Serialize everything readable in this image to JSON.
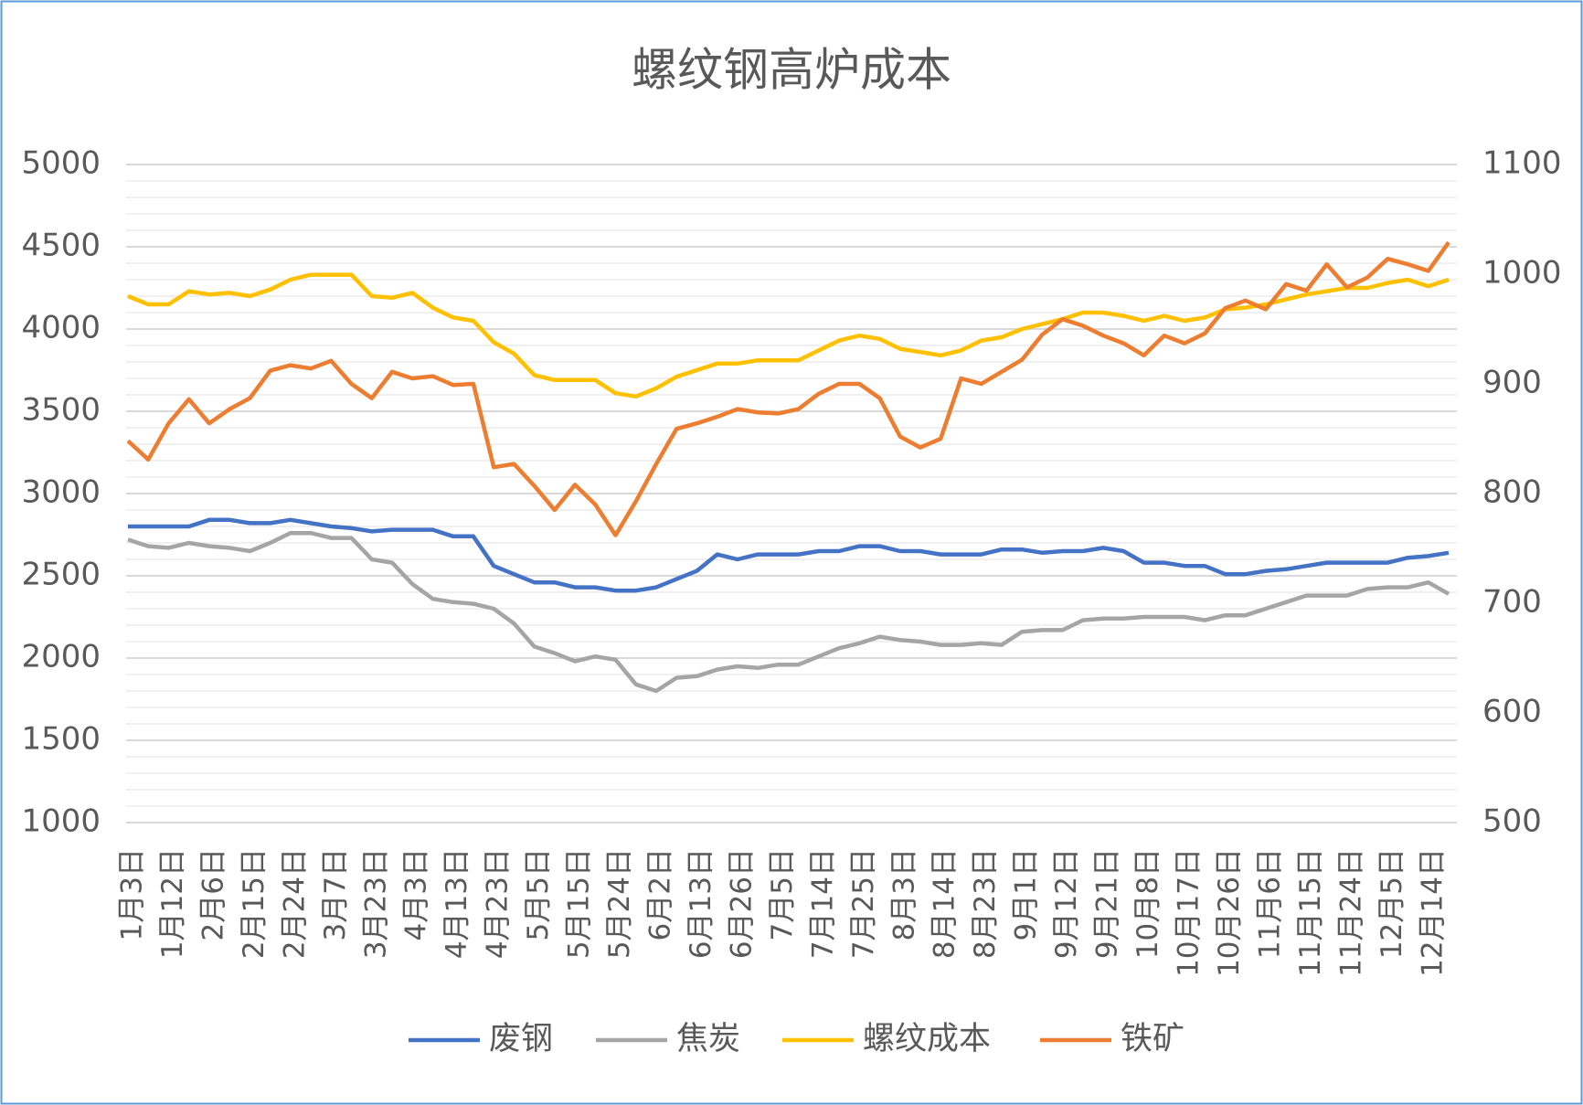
{
  "chart_data": {
    "type": "line",
    "title": "螺纹钢高炉成本",
    "categories": [
      "1月3日",
      null,
      "1月12日",
      null,
      "2月6日",
      null,
      "2月15日",
      null,
      "2月24日",
      null,
      "3月7日",
      null,
      "3月23日",
      null,
      "4月3日",
      null,
      "4月13日",
      null,
      "4月23日",
      null,
      "5月5日",
      null,
      "5月15日",
      null,
      "5月24日",
      null,
      "6月2日",
      null,
      "6月13日",
      null,
      "6月26日",
      null,
      "7月5日",
      null,
      "7月14日",
      null,
      "7月25日",
      null,
      "8月3日",
      null,
      "8月14日",
      null,
      "8月23日",
      null,
      "9月1日",
      null,
      "9月12日",
      null,
      "9月21日",
      null,
      "10月8日",
      null,
      "10月17日",
      null,
      "10月26日",
      null,
      "11月6日",
      null,
      "11月15日",
      null,
      "11月24日",
      null,
      "12月5日",
      null,
      "12月14日",
      null
    ],
    "series": [
      {
        "name": "废钢",
        "color": "#4472c4",
        "values": [
          2800,
          2800,
          2800,
          2800,
          2840,
          2840,
          2820,
          2820,
          2840,
          2820,
          2800,
          2790,
          2770,
          2780,
          2780,
          2780,
          2740,
          2740,
          2560,
          2510,
          2460,
          2460,
          2430,
          2430,
          2410,
          2410,
          2430,
          2480,
          2530,
          2630,
          2600,
          2630,
          2630,
          2630,
          2650,
          2650,
          2680,
          2680,
          2650,
          2650,
          2630,
          2630,
          2630,
          2660,
          2660,
          2640,
          2650,
          2650,
          2670,
          2650,
          2580,
          2580,
          2560,
          2560,
          2510,
          2510,
          2530,
          2540,
          2560,
          2580,
          2580,
          2580,
          2580,
          2610,
          2620,
          2640
        ]
      },
      {
        "name": "焦炭",
        "color": "#a5a5a5",
        "values": [
          2720,
          2680,
          2670,
          2700,
          2680,
          2670,
          2650,
          2700,
          2760,
          2760,
          2730,
          2730,
          2600,
          2580,
          2450,
          2360,
          2340,
          2330,
          2300,
          2210,
          2070,
          2030,
          1980,
          2010,
          1990,
          1840,
          1800,
          1880,
          1890,
          1930,
          1950,
          1940,
          1960,
          1960,
          2010,
          2060,
          2090,
          2130,
          2110,
          2100,
          2080,
          2080,
          2090,
          2080,
          2160,
          2170,
          2170,
          2230,
          2240,
          2240,
          2250,
          2250,
          2250,
          2230,
          2260,
          2260,
          2300,
          2340,
          2380,
          2380,
          2380,
          2420,
          2430,
          2430,
          2460,
          2390
        ]
      },
      {
        "name": "螺纹成本",
        "color": "#ffc000",
        "values": [
          4200,
          4150,
          4150,
          4230,
          4210,
          4220,
          4200,
          4240,
          4300,
          4330,
          4330,
          4330,
          4200,
          4190,
          4220,
          4130,
          4070,
          4050,
          3920,
          3850,
          3720,
          3690,
          3690,
          3690,
          3610,
          3590,
          3640,
          3710,
          3750,
          3790,
          3790,
          3810,
          3810,
          3810,
          3870,
          3930,
          3960,
          3940,
          3880,
          3860,
          3840,
          3870,
          3930,
          3950,
          4000,
          4030,
          4060,
          4100,
          4100,
          4080,
          4050,
          4080,
          4050,
          4070,
          4120,
          4130,
          4150,
          4180,
          4210,
          4230,
          4250,
          4250,
          4280,
          4300,
          4260,
          4300
        ]
      },
      {
        "name": "铁矿",
        "color": "#ed7d31",
        "axis": "y2",
        "values": [
          848,
          831,
          864,
          886,
          864,
          877,
          887,
          912,
          917,
          914,
          921,
          900,
          887,
          911,
          905,
          907,
          899,
          900,
          824,
          827,
          807,
          785,
          808,
          790,
          762,
          793,
          827,
          859,
          864,
          870,
          877,
          874,
          873,
          877,
          891,
          900,
          900,
          887,
          852,
          842,
          850,
          905,
          900,
          911,
          922,
          945,
          959,
          953,
          944,
          937,
          926,
          944,
          937,
          946,
          969,
          976,
          968,
          991,
          985,
          1009,
          988,
          997,
          1014,
          1009,
          1003,
          1029
        ]
      }
    ],
    "ylim": [
      1000,
      5000
    ],
    "yticks": [
      1000,
      1500,
      2000,
      2500,
      3000,
      3500,
      4000,
      4500,
      5000
    ],
    "y2lim": [
      500,
      1100
    ],
    "y2ticks": [
      500,
      600,
      700,
      800,
      900,
      1000,
      1100
    ],
    "grid": true,
    "minor_grid": true,
    "legend": "bottom"
  }
}
